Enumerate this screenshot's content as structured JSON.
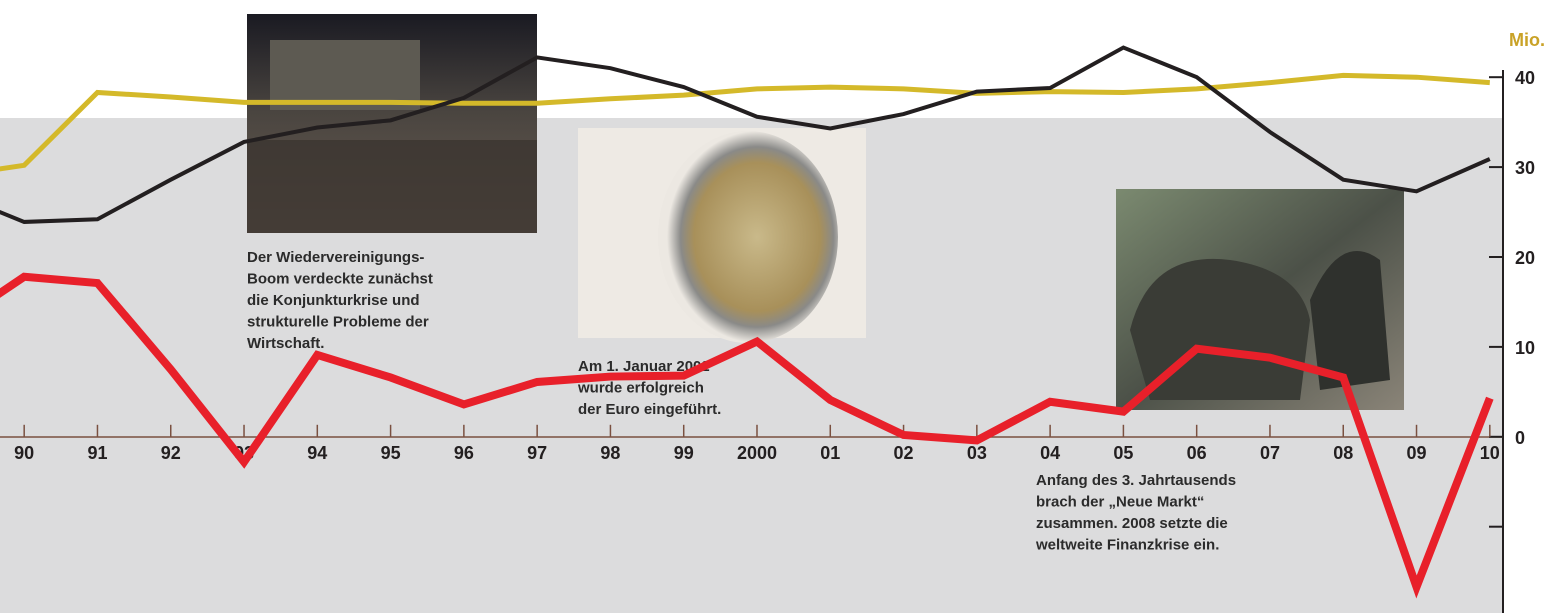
{
  "chart_data": {
    "type": "line",
    "y_label": "Mio.",
    "x": [
      1989,
      1990,
      1991,
      1992,
      1993,
      1994,
      1995,
      1996,
      1997,
      1998,
      1999,
      2000,
      2001,
      2002,
      2003,
      2004,
      2005,
      2006,
      2007,
      2008,
      2009,
      2010
    ],
    "xlim": [
      1989.67,
      2010.18
    ],
    "xticks": [
      {
        "value": 1990,
        "label": "90"
      },
      {
        "value": 1991,
        "label": "91"
      },
      {
        "value": 1992,
        "label": "92"
      },
      {
        "value": 1993,
        "label": "93"
      },
      {
        "value": 1994,
        "label": "94"
      },
      {
        "value": 1995,
        "label": "95"
      },
      {
        "value": 1996,
        "label": "96"
      },
      {
        "value": 1997,
        "label": "97"
      },
      {
        "value": 1998,
        "label": "98"
      },
      {
        "value": 1999,
        "label": "99"
      },
      2000,
      {
        "value": 2001,
        "label": "01"
      },
      {
        "value": 2002,
        "label": "02"
      },
      {
        "value": 2003,
        "label": "03"
      },
      {
        "value": 2004,
        "label": "04"
      },
      {
        "value": 2005,
        "label": "05"
      },
      {
        "value": 2006,
        "label": "06"
      },
      {
        "value": 2007,
        "label": "07"
      },
      {
        "value": 2008,
        "label": "08"
      },
      {
        "value": 2009,
        "label": "09"
      },
      {
        "value": 2010,
        "label": "10"
      }
    ],
    "ylim": [
      -19.6,
      40.8
    ],
    "yticks": [
      {
        "value": -10,
        "label": null
      },
      0,
      10,
      20,
      30,
      40
    ],
    "series": [
      {
        "color": "#d4b92a",
        "width": 5,
        "values": [
          29.0,
          30.2,
          38.3,
          37.8,
          37.2,
          37.2,
          37.2,
          37.1,
          37.1,
          37.6,
          38.0,
          38.7,
          38.9,
          38.7,
          38.2,
          38.4,
          38.3,
          38.7,
          39.4,
          40.2,
          40.0,
          39.4
        ]
      },
      {
        "color": "#231f20",
        "width": 4,
        "values": [
          27.2,
          23.9,
          24.2,
          28.6,
          32.8,
          34.4,
          35.2,
          37.7,
          42.2,
          41.0,
          38.9,
          35.6,
          34.3,
          35.9,
          38.4,
          38.8,
          43.3,
          40.0,
          33.9,
          28.6,
          27.3,
          30.9
        ]
      },
      {
        "color": "#e8202a",
        "width": 8,
        "values": [
          12.3,
          17.8,
          17.1,
          7.5,
          -2.8,
          9.1,
          6.6,
          3.6,
          6.1,
          6.7,
          6.8,
          10.6,
          4.1,
          0.2,
          -0.4,
          3.9,
          2.8,
          9.8,
          8.8,
          6.6,
          -16.7,
          4.3
        ]
      }
    ],
    "annotations": [
      {
        "lines": [
          "Der Wiedervereinigungs-",
          "Boom verdeckte zunächst",
          "die Konjunkturkrise und",
          "strukturelle Probleme der",
          "Wirtschaft."
        ]
      },
      {
        "lines": [
          "Am 1. Januar 2002",
          "wurde erfolgreich",
          "der Euro eingeführt."
        ]
      },
      {
        "lines": [
          "Anfang des 3. Jahrtausends",
          "brach der „Neue Markt“",
          "zusammen. 2008 setzte die",
          "weltweite Finanzkrise ein."
        ]
      }
    ]
  }
}
